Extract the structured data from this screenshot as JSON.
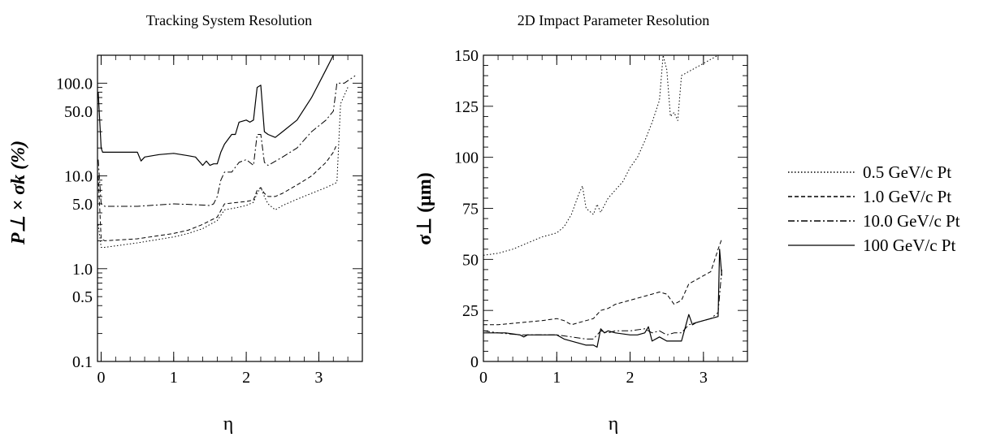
{
  "chart_data": [
    {
      "type": "line",
      "title": "Tracking System Resolution",
      "xlabel": "η",
      "ylabel": "P⊥ × σk (%)",
      "xlim": [
        -0.05,
        3.6
      ],
      "ylim": [
        0.1,
        200
      ],
      "yscale": "log",
      "x_ticks": [
        "0",
        "1",
        "2",
        "3"
      ],
      "y_ticks": [
        "0.1",
        "0.5",
        "1.0",
        "5.0",
        "10.0",
        "50.0",
        "100.0"
      ],
      "series": [
        {
          "name": "100 GeV/c Pt",
          "dash": "solid",
          "x": [
            -0.04,
            0.0,
            0.02,
            0.05,
            0.3,
            0.5,
            0.55,
            0.6,
            0.8,
            1.0,
            1.2,
            1.3,
            1.4,
            1.45,
            1.5,
            1.55,
            1.6,
            1.65,
            1.7,
            1.8,
            1.85,
            1.9,
            2.0,
            2.05,
            2.1,
            2.15,
            2.2,
            2.25,
            2.3,
            2.4,
            2.5,
            2.7,
            2.9,
            3.1,
            3.2
          ],
          "y": [
            80,
            20,
            18,
            18,
            18,
            18,
            14.5,
            16,
            17,
            17.5,
            16.5,
            16,
            13,
            14.5,
            13,
            13.5,
            13.5,
            18,
            22,
            28,
            28,
            38,
            40,
            38,
            40,
            90,
            95,
            30,
            28,
            26,
            30,
            40,
            70,
            140,
            200
          ]
        },
        {
          "name": "10.0 GeV/c Pt",
          "dash": "dashdot",
          "x": [
            -0.04,
            0.0,
            0.05,
            0.5,
            1.0,
            1.3,
            1.5,
            1.55,
            1.6,
            1.65,
            1.7,
            1.8,
            1.9,
            2.0,
            2.1,
            2.15,
            2.2,
            2.25,
            2.3,
            2.5,
            2.7,
            2.9,
            3.1,
            3.2,
            3.25,
            3.35,
            3.5
          ],
          "y": [
            15,
            5,
            4.7,
            4.7,
            5,
            4.9,
            4.8,
            5,
            6,
            9,
            11,
            11,
            14,
            15,
            13,
            28,
            28,
            14,
            13,
            16,
            20,
            30,
            40,
            50,
            100,
            100,
            120
          ]
        },
        {
          "name": "1.0 GeV/c Pt",
          "dash": "dashed",
          "x": [
            -0.04,
            0.0,
            0.05,
            0.5,
            1.0,
            1.2,
            1.4,
            1.5,
            1.6,
            1.7,
            1.9,
            2.0,
            2.1,
            2.15,
            2.2,
            2.25,
            2.3,
            2.4,
            2.5,
            2.7,
            2.9,
            3.1,
            3.2,
            3.25
          ],
          "y": [
            10,
            2.1,
            2.0,
            2.1,
            2.4,
            2.6,
            3.0,
            3.3,
            3.6,
            5.0,
            5.2,
            5.3,
            5.5,
            7.0,
            7.5,
            6.5,
            6.0,
            6.0,
            6.5,
            8.0,
            10,
            14,
            18,
            22
          ]
        },
        {
          "name": "0.5 GeV/c Pt",
          "dash": "dotted",
          "x": [
            -0.04,
            0.0,
            0.05,
            0.5,
            1.0,
            1.2,
            1.4,
            1.5,
            1.6,
            1.7,
            1.9,
            2.0,
            2.1,
            2.15,
            2.2,
            2.25,
            2.3,
            2.4,
            2.5,
            2.7,
            2.9,
            3.1,
            3.25,
            3.3,
            3.4
          ],
          "y": [
            3.0,
            1.7,
            1.7,
            1.9,
            2.2,
            2.4,
            2.7,
            3.0,
            3.3,
            4.3,
            4.6,
            4.8,
            5.2,
            6.5,
            7.5,
            6.0,
            5.0,
            4.3,
            4.8,
            5.6,
            6.5,
            7.5,
            8.5,
            60,
            90
          ]
        }
      ]
    },
    {
      "type": "line",
      "title": "2D Impact Parameter Resolution",
      "xlabel": "η",
      "ylabel": "σ⊥ (μm)",
      "xlim": [
        0,
        3.6
      ],
      "ylim": [
        0,
        150
      ],
      "x_ticks": [
        "0",
        "1",
        "2",
        "3"
      ],
      "y_ticks": [
        "0",
        "25",
        "50",
        "75",
        "100",
        "125",
        "150"
      ],
      "series": [
        {
          "name": "0.5 GeV/c Pt",
          "dash": "dotted",
          "x": [
            0.0,
            0.2,
            0.4,
            0.6,
            0.8,
            1.0,
            1.1,
            1.2,
            1.3,
            1.35,
            1.4,
            1.5,
            1.55,
            1.6,
            1.7,
            1.8,
            1.9,
            2.0,
            2.1,
            2.2,
            2.3,
            2.4,
            2.45,
            2.5,
            2.55,
            2.6,
            2.65,
            2.7,
            2.8,
            2.9,
            3.0,
            3.1,
            3.2
          ],
          "y": [
            52,
            53,
            55,
            58,
            61,
            63,
            66,
            72,
            82,
            86,
            75,
            72,
            77,
            73,
            80,
            84,
            88,
            95,
            100,
            108,
            117,
            128,
            150,
            143,
            120,
            122,
            118,
            140,
            142,
            144,
            146,
            148,
            150
          ]
        },
        {
          "name": "1.0 GeV/c Pt",
          "dash": "dashed",
          "x": [
            0.0,
            0.2,
            0.5,
            0.8,
            1.0,
            1.1,
            1.2,
            1.3,
            1.4,
            1.5,
            1.6,
            1.7,
            1.8,
            2.0,
            2.2,
            2.3,
            2.4,
            2.5,
            2.6,
            2.7,
            2.8,
            2.9,
            3.0,
            3.1,
            3.2,
            3.25
          ],
          "y": [
            18,
            18,
            19,
            20,
            21,
            20,
            18,
            19,
            20,
            21,
            25,
            26,
            28,
            30,
            32,
            33,
            34,
            33,
            28,
            30,
            38,
            40,
            42,
            44,
            55,
            60
          ]
        },
        {
          "name": "10.0 GeV/c Pt",
          "dash": "dashdot",
          "x": [
            0.0,
            0.2,
            0.5,
            0.8,
            1.0,
            1.2,
            1.4,
            1.5,
            1.6,
            1.7,
            1.8,
            2.0,
            2.2,
            2.3,
            2.4,
            2.5,
            2.6,
            2.7,
            2.8,
            2.9,
            3.0,
            3.1,
            3.2,
            3.25
          ],
          "y": [
            15,
            14,
            13,
            13,
            13,
            12,
            11,
            11,
            15,
            14,
            15,
            15,
            16,
            14,
            15,
            13,
            14,
            14,
            18,
            19,
            20,
            21,
            24,
            45
          ]
        },
        {
          "name": "100 GeV/c Pt",
          "dash": "solid",
          "x": [
            0.0,
            0.1,
            0.3,
            0.5,
            0.55,
            0.6,
            0.8,
            1.0,
            1.1,
            1.2,
            1.3,
            1.4,
            1.5,
            1.55,
            1.6,
            1.65,
            1.7,
            1.8,
            2.0,
            2.1,
            2.2,
            2.25,
            2.3,
            2.4,
            2.5,
            2.6,
            2.7,
            2.8,
            2.85,
            2.9,
            3.0,
            3.1,
            3.2,
            3.22,
            3.25
          ],
          "y": [
            14,
            14,
            14,
            13,
            12,
            13,
            13,
            13,
            11,
            10,
            9,
            8,
            8,
            7,
            16,
            14,
            15,
            14,
            13,
            13,
            14,
            17,
            10,
            12,
            10,
            10,
            10,
            23,
            18,
            19,
            20,
            21,
            22,
            55,
            42
          ]
        }
      ]
    }
  ],
  "legend": [
    {
      "label": "0.5 GeV/c Pt",
      "dash": "dotted"
    },
    {
      "label": "1.0 GeV/c Pt",
      "dash": "dashed"
    },
    {
      "label": "10.0 GeV/c Pt",
      "dash": "dashdot"
    },
    {
      "label": "100 GeV/c Pt",
      "dash": "solid"
    }
  ]
}
